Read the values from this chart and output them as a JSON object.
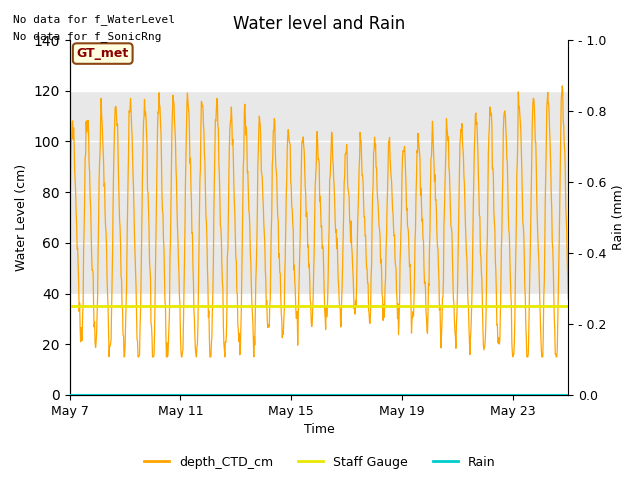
{
  "title": "Water level and Rain",
  "xlabel": "Time",
  "ylabel_left": "Water Level (cm)",
  "ylabel_right": "Rain (mm)",
  "annotation_lines": [
    "No data for f_WaterLevel",
    "No data for f_SonicRng"
  ],
  "gt_met_label": "GT_met",
  "ylim_left": [
    0,
    140
  ],
  "ylim_right": [
    0,
    1.0
  ],
  "yticks_left": [
    0,
    20,
    40,
    60,
    80,
    100,
    120,
    140
  ],
  "yticks_right": [
    0.0,
    0.2,
    0.4,
    0.6,
    0.8,
    1.0
  ],
  "xtick_labels": [
    "May 7",
    "May 11",
    "May 15",
    "May 19",
    "May 23"
  ],
  "color_ctd": "#FFA500",
  "color_staff": "#E8E800",
  "color_rain": "#00CCCC",
  "color_shading": "#E8E8E8",
  "shading_ylim": [
    40,
    120
  ],
  "staff_value": 35,
  "legend_labels": [
    "depth_CTD_cm",
    "Staff Gauge",
    "Rain"
  ],
  "title_fontsize": 12,
  "label_fontsize": 9,
  "n_days": 18
}
